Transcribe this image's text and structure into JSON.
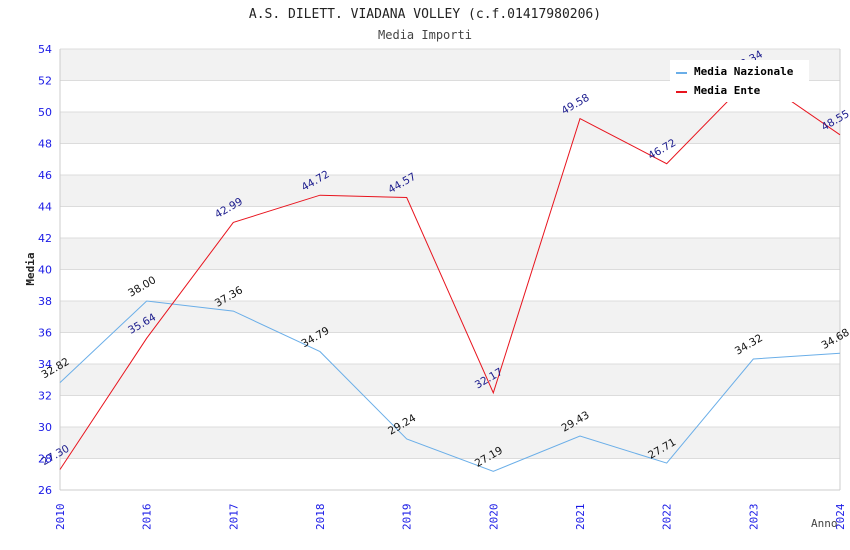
{
  "chart_data": {
    "type": "line",
    "title": "A.S. DILETT. VIADANA VOLLEY (c.f.01417980206)",
    "subtitle": "Media Importi",
    "xlabel": "Anno",
    "ylabel": "Media",
    "categories": [
      "2010",
      "2016",
      "2017",
      "2018",
      "2019",
      "2020",
      "2021",
      "2022",
      "2023",
      "2024"
    ],
    "ylim": [
      26,
      54
    ],
    "yticks": [
      26,
      28,
      30,
      32,
      34,
      36,
      38,
      40,
      42,
      44,
      46,
      48,
      50,
      52,
      54
    ],
    "grid": true,
    "legend_position": "top-right",
    "series": [
      {
        "name": "Media Nazionale",
        "color": "#6aaee8",
        "values": [
          32.82,
          38.0,
          37.36,
          34.79,
          29.24,
          27.19,
          29.43,
          27.71,
          34.32,
          34.68
        ],
        "labels": [
          "32.82",
          "38.00",
          "37.36",
          "34.79",
          "29.24",
          "27.19",
          "29.43",
          "27.71",
          "34.32",
          "34.68"
        ]
      },
      {
        "name": "Media Ente",
        "color": "#e8141e",
        "values": [
          27.3,
          35.64,
          42.99,
          44.72,
          44.57,
          32.17,
          49.58,
          46.72,
          52.34,
          48.55
        ],
        "labels": [
          "27.30",
          "35.64",
          "42.99",
          "44.72",
          "44.57",
          "32.17",
          "49.58",
          "46.72",
          "52.34",
          "48.55"
        ]
      }
    ]
  }
}
